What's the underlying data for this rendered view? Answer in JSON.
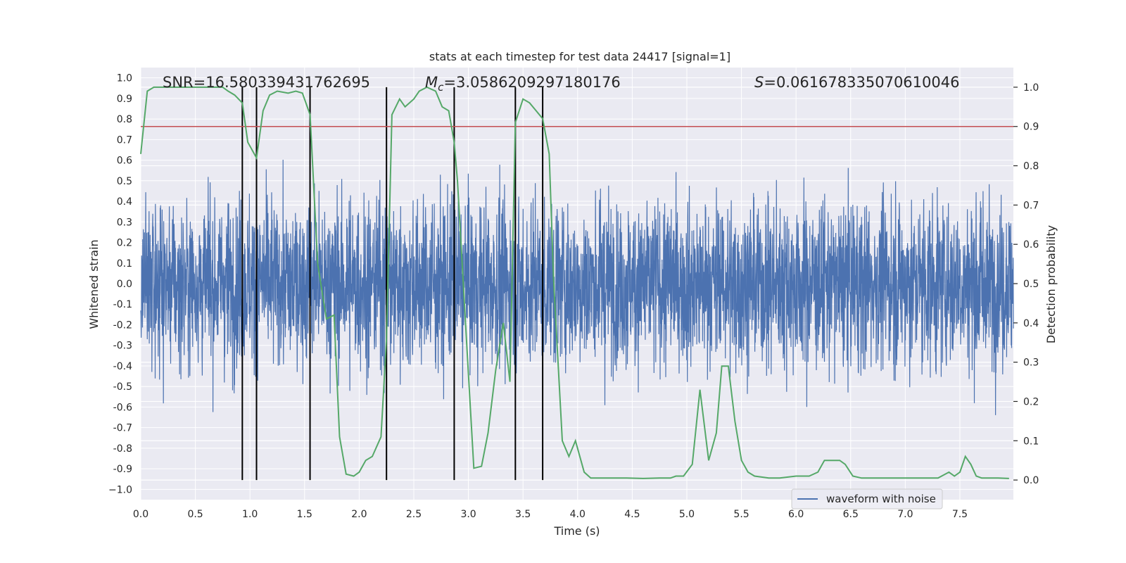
{
  "chart_data": {
    "type": "line",
    "title": "stats at each timestep for test data 24417 [signal=1]",
    "xlabel": "Time (s)",
    "ylabel_left": "Whitened strain",
    "ylabel_right": "Detection probability",
    "xlim": [
      0,
      7.99
    ],
    "ylim_left": [
      -1.05,
      1.05
    ],
    "ylim_right": [
      -0.05,
      1.05
    ],
    "x_ticks": [
      0.0,
      0.5,
      1.0,
      1.5,
      2.0,
      2.5,
      3.0,
      3.5,
      4.0,
      4.5,
      5.0,
      5.5,
      6.0,
      6.5,
      7.0,
      7.5
    ],
    "x_tick_labels": [
      "0.0",
      "0.5",
      "1.0",
      "1.5",
      "2.0",
      "2.5",
      "3.0",
      "3.5",
      "4.0",
      "4.5",
      "5.0",
      "5.5",
      "6.0",
      "6.5",
      "7.0",
      "7.5"
    ],
    "y_left_ticks": [
      1.0,
      0.9,
      0.8,
      0.7,
      0.6,
      0.5,
      0.4,
      0.3,
      0.2,
      0.1,
      0.0,
      -0.1,
      -0.2,
      -0.3,
      -0.4,
      -0.5,
      -0.6,
      -0.7,
      -0.8,
      -0.9,
      -1.0
    ],
    "y_left_tick_labels": [
      "1.0",
      "0.9",
      "0.8",
      "0.7",
      "0.6",
      "0.5",
      "0.4",
      "0.3",
      "0.2",
      "0.1",
      "0.0",
      "-0.1",
      "-0.2",
      "-0.3",
      "-0.4",
      "-0.5",
      "-0.6",
      "-0.7",
      "-0.8",
      "-0.9",
      "−1.0"
    ],
    "y_right_ticks": [
      1.0,
      0.9,
      0.8,
      0.7,
      0.6,
      0.5,
      0.4,
      0.3,
      0.2,
      0.1,
      0.0
    ],
    "y_right_tick_labels": [
      "1.0",
      "0.9",
      "0.8",
      "0.7",
      "0.6",
      "0.5",
      "0.4",
      "0.3",
      "0.2",
      "0.1",
      "0.0"
    ],
    "annotations": {
      "snr": "SNR=16.580339431762695",
      "mc_symbol": "M",
      "mc_sub": "c",
      "mc_value": "=3.0586209297180176",
      "s_symbol": "S",
      "s_value": "=0.061678335070610046"
    },
    "threshold": {
      "value": 0.9,
      "axis": "right",
      "color": "#c44e52"
    },
    "event_lines": [
      0.93,
      1.06,
      1.55,
      2.25,
      2.87,
      3.43,
      3.68
    ],
    "legend": {
      "label": "waveform with noise",
      "position": "lower-right"
    },
    "series": [
      {
        "name": "waveform with noise",
        "axis": "left",
        "color": "#4c72b0",
        "approx_amplitude": 0.45,
        "note": "dense noise trace, ~4000 samples spanning 0 to 8 s"
      },
      {
        "name": "detection probability",
        "axis": "right",
        "color": "#55a868",
        "x": [
          0.0,
          0.06,
          0.12,
          0.2,
          0.3,
          0.4,
          0.5,
          0.6,
          0.7,
          0.75,
          0.8,
          0.86,
          0.93,
          0.98,
          1.06,
          1.12,
          1.18,
          1.25,
          1.35,
          1.42,
          1.48,
          1.55,
          1.62,
          1.7,
          1.77,
          1.82,
          1.88,
          1.95,
          2.0,
          2.06,
          2.12,
          2.2,
          2.25,
          2.3,
          2.37,
          2.42,
          2.5,
          2.55,
          2.62,
          2.7,
          2.76,
          2.82,
          2.87,
          2.9,
          3.0,
          3.05,
          3.12,
          3.18,
          3.25,
          3.32,
          3.38,
          3.43,
          3.5,
          3.56,
          3.62,
          3.68,
          3.74,
          3.78,
          3.86,
          3.92,
          3.98,
          4.06,
          4.12,
          4.3,
          4.45,
          4.6,
          4.75,
          4.85,
          4.9,
          4.97,
          5.05,
          5.12,
          5.2,
          5.27,
          5.32,
          5.38,
          5.44,
          5.5,
          5.56,
          5.62,
          5.75,
          5.85,
          6.0,
          6.12,
          6.2,
          6.26,
          6.4,
          6.45,
          6.52,
          6.6,
          6.75,
          6.9,
          7.0,
          7.15,
          7.3,
          7.4,
          7.45,
          7.5,
          7.55,
          7.6,
          7.65,
          7.7,
          7.75,
          7.85,
          7.95
        ],
        "y": [
          0.83,
          0.99,
          1.0,
          1.0,
          1.0,
          1.0,
          1.0,
          1.0,
          1.0,
          1.0,
          0.99,
          0.98,
          0.96,
          0.86,
          0.82,
          0.94,
          0.98,
          0.99,
          0.985,
          0.99,
          0.985,
          0.93,
          0.55,
          0.41,
          0.42,
          0.11,
          0.015,
          0.01,
          0.02,
          0.05,
          0.06,
          0.11,
          0.36,
          0.93,
          0.97,
          0.95,
          0.97,
          0.99,
          1.0,
          0.99,
          0.95,
          0.94,
          0.86,
          0.76,
          0.27,
          0.03,
          0.035,
          0.12,
          0.28,
          0.4,
          0.25,
          0.91,
          0.97,
          0.96,
          0.94,
          0.92,
          0.83,
          0.51,
          0.1,
          0.06,
          0.1,
          0.02,
          0.005,
          0.005,
          0.005,
          0.004,
          0.005,
          0.005,
          0.01,
          0.01,
          0.04,
          0.23,
          0.05,
          0.12,
          0.29,
          0.29,
          0.15,
          0.05,
          0.02,
          0.01,
          0.005,
          0.005,
          0.01,
          0.01,
          0.02,
          0.05,
          0.05,
          0.04,
          0.01,
          0.005,
          0.005,
          0.005,
          0.005,
          0.005,
          0.005,
          0.02,
          0.01,
          0.02,
          0.06,
          0.04,
          0.01,
          0.005,
          0.005,
          0.005,
          0.004
        ]
      }
    ]
  }
}
